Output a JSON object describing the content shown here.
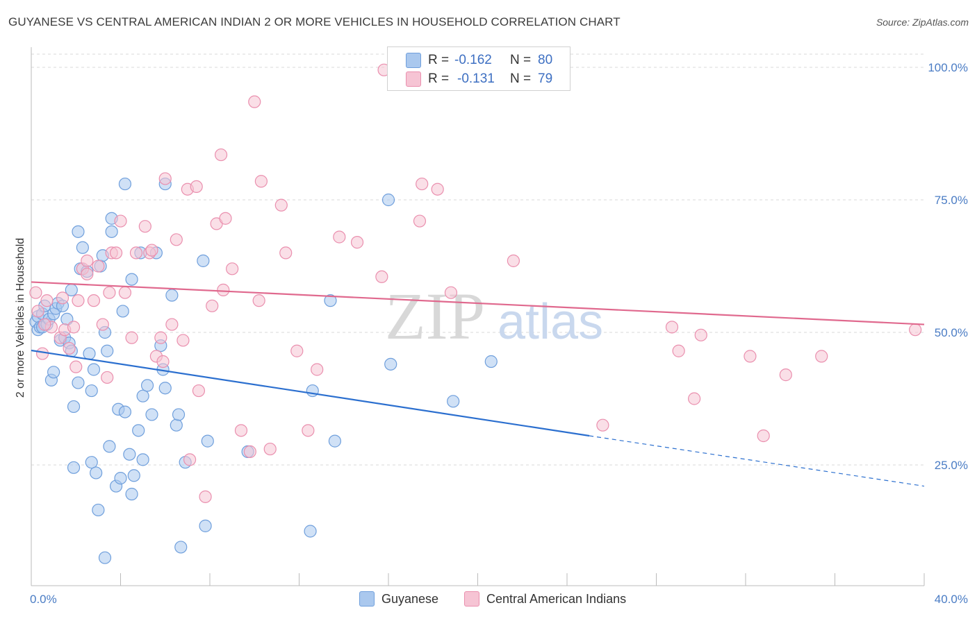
{
  "title": "GUYANESE VS CENTRAL AMERICAN INDIAN 2 OR MORE VEHICLES IN HOUSEHOLD CORRELATION CHART",
  "source": "Source: ZipAtlas.com",
  "watermark": {
    "zip": "ZIP",
    "atlas": "atlas"
  },
  "legend_top": {
    "rows": [
      {
        "r_label": "R =",
        "r_value": "-0.162",
        "n_label": "N =",
        "n_value": "80"
      },
      {
        "r_label": "R =",
        "r_value": "-0.131",
        "n_label": "N =",
        "n_value": "79"
      }
    ]
  },
  "legend_bottom": [
    "Guyanese",
    "Central American Indians"
  ],
  "colors": {
    "guyanese_fill": "#aac8ee",
    "guyanese_stroke": "#6f9fdc",
    "guyanese_line": "#2b6fcf",
    "cai_fill": "#f6c4d4",
    "cai_stroke": "#ea8fae",
    "cai_line": "#e0698e",
    "tick_text": "#4a7cc4",
    "grid": "#d9d9d9"
  },
  "chart_data": {
    "type": "scatter",
    "title": "GUYANESE VS CENTRAL AMERICAN INDIAN 2 OR MORE VEHICLES IN HOUSEHOLD CORRELATION CHART",
    "xlabel": "",
    "ylabel": "2 or more Vehicles in Household",
    "xlim": [
      0,
      40
    ],
    "ylim": [
      0,
      105
    ],
    "x_tick_labels": [
      "0.0%",
      "40.0%"
    ],
    "y_ticks": [
      25,
      50,
      75,
      100
    ],
    "y_tick_labels": [
      "25.0%",
      "50.0%",
      "75.0%",
      "100.0%"
    ],
    "grid": true,
    "legend_position": "top-center",
    "series": [
      {
        "name": "Guyanese",
        "r": -0.162,
        "n": 80,
        "trend": {
          "x0": 0,
          "y0": 46.6,
          "x1": 25,
          "y1": 30.5,
          "dashed_to_x": 40,
          "dashed_to_y": 21
        },
        "points": [
          [
            0.2,
            52
          ],
          [
            0.3,
            50.5
          ],
          [
            0.3,
            53
          ],
          [
            0.4,
            51
          ],
          [
            0.5,
            53.5
          ],
          [
            0.5,
            51
          ],
          [
            0.6,
            55
          ],
          [
            0.7,
            51.5
          ],
          [
            0.8,
            52.5
          ],
          [
            0.9,
            41
          ],
          [
            1.0,
            42.5
          ],
          [
            1.0,
            53.5
          ],
          [
            1.1,
            54.5
          ],
          [
            1.2,
            55.5
          ],
          [
            1.3,
            48.5
          ],
          [
            1.4,
            55
          ],
          [
            1.5,
            49
          ],
          [
            1.6,
            52.5
          ],
          [
            1.7,
            48
          ],
          [
            1.8,
            58
          ],
          [
            1.8,
            46.5
          ],
          [
            1.9,
            36
          ],
          [
            1.9,
            24.5
          ],
          [
            2.1,
            69
          ],
          [
            2.1,
            40.5
          ],
          [
            2.2,
            62
          ],
          [
            2.3,
            66
          ],
          [
            2.5,
            61.5
          ],
          [
            2.6,
            46
          ],
          [
            2.7,
            25.5
          ],
          [
            2.7,
            39
          ],
          [
            2.8,
            43
          ],
          [
            2.9,
            23.5
          ],
          [
            3.0,
            16.5
          ],
          [
            3.1,
            62.5
          ],
          [
            3.2,
            64.5
          ],
          [
            3.3,
            7.5
          ],
          [
            3.3,
            50
          ],
          [
            3.4,
            46.5
          ],
          [
            3.5,
            28.5
          ],
          [
            3.6,
            69
          ],
          [
            3.6,
            71.5
          ],
          [
            3.8,
            21
          ],
          [
            3.9,
            35.5
          ],
          [
            4.0,
            22.5
          ],
          [
            4.1,
            54
          ],
          [
            4.2,
            35
          ],
          [
            4.2,
            78
          ],
          [
            4.4,
            27
          ],
          [
            4.5,
            19.5
          ],
          [
            4.5,
            60
          ],
          [
            4.6,
            23
          ],
          [
            4.8,
            31.5
          ],
          [
            4.9,
            65
          ],
          [
            5.0,
            38
          ],
          [
            5.0,
            26
          ],
          [
            5.2,
            40
          ],
          [
            5.4,
            34.5
          ],
          [
            5.6,
            65
          ],
          [
            5.8,
            47.5
          ],
          [
            5.9,
            43
          ],
          [
            6.0,
            39.5
          ],
          [
            6.0,
            78
          ],
          [
            6.3,
            57
          ],
          [
            6.5,
            32.5
          ],
          [
            6.6,
            34.5
          ],
          [
            6.7,
            9.5
          ],
          [
            6.9,
            25.5
          ],
          [
            7.7,
            63.5
          ],
          [
            7.8,
            13.5
          ],
          [
            7.9,
            29.5
          ],
          [
            9.7,
            27.5
          ],
          [
            12.5,
            12.5
          ],
          [
            12.6,
            39
          ],
          [
            13.6,
            29.5
          ],
          [
            13.4,
            56
          ],
          [
            16.0,
            75
          ],
          [
            16.1,
            44
          ],
          [
            18.9,
            37
          ],
          [
            20.6,
            44.5
          ]
        ]
      },
      {
        "name": "Central American Indians",
        "r": -0.131,
        "n": 79,
        "trend": {
          "x0": 0,
          "y0": 59.5,
          "x1": 40,
          "y1": 51.5
        },
        "points": [
          [
            0.2,
            57.5
          ],
          [
            0.3,
            54
          ],
          [
            0.5,
            46
          ],
          [
            0.7,
            56
          ],
          [
            0.9,
            51
          ],
          [
            1.3,
            49
          ],
          [
            1.4,
            56.5
          ],
          [
            1.5,
            50.5
          ],
          [
            1.7,
            47
          ],
          [
            1.9,
            51
          ],
          [
            2.0,
            43.5
          ],
          [
            2.1,
            56
          ],
          [
            2.3,
            62
          ],
          [
            2.5,
            61
          ],
          [
            2.5,
            63.5
          ],
          [
            2.8,
            56
          ],
          [
            3.0,
            62.5
          ],
          [
            3.2,
            51.5
          ],
          [
            3.4,
            41.5
          ],
          [
            3.5,
            57.5
          ],
          [
            3.6,
            65
          ],
          [
            3.8,
            65
          ],
          [
            4.0,
            71
          ],
          [
            4.2,
            57.5
          ],
          [
            4.5,
            49
          ],
          [
            4.7,
            65
          ],
          [
            5.1,
            70
          ],
          [
            5.3,
            65
          ],
          [
            5.4,
            65.5
          ],
          [
            5.6,
            45.5
          ],
          [
            5.8,
            49
          ],
          [
            5.9,
            44.5
          ],
          [
            6.0,
            79
          ],
          [
            6.3,
            51.5
          ],
          [
            6.5,
            67.5
          ],
          [
            6.8,
            48.5
          ],
          [
            7.0,
            77
          ],
          [
            7.1,
            26
          ],
          [
            7.4,
            77.5
          ],
          [
            7.5,
            39
          ],
          [
            7.8,
            19
          ],
          [
            8.1,
            55
          ],
          [
            8.3,
            70.5
          ],
          [
            8.5,
            83.5
          ],
          [
            8.6,
            58
          ],
          [
            8.7,
            71.5
          ],
          [
            9.0,
            62
          ],
          [
            9.4,
            31.5
          ],
          [
            9.8,
            27.5
          ],
          [
            10.0,
            93.5
          ],
          [
            10.2,
            56
          ],
          [
            10.3,
            78.5
          ],
          [
            10.7,
            28
          ],
          [
            11.2,
            74
          ],
          [
            11.4,
            65
          ],
          [
            11.9,
            46.5
          ],
          [
            12.4,
            31.5
          ],
          [
            12.8,
            43
          ],
          [
            13.8,
            68
          ],
          [
            14.6,
            67
          ],
          [
            15.7,
            60.5
          ],
          [
            15.8,
            99.5
          ],
          [
            17.4,
            71
          ],
          [
            17.5,
            78
          ],
          [
            18.2,
            77
          ],
          [
            18.8,
            57.5
          ],
          [
            19.4,
            99
          ],
          [
            21.6,
            63.5
          ],
          [
            25.6,
            32.5
          ],
          [
            28.7,
            51
          ],
          [
            29.0,
            46.5
          ],
          [
            29.7,
            37.5
          ],
          [
            30.0,
            49.5
          ],
          [
            32.2,
            45.5
          ],
          [
            32.8,
            30.5
          ],
          [
            33.8,
            42
          ],
          [
            35.4,
            45.5
          ],
          [
            39.6,
            50.5
          ],
          [
            0.6,
            51.5
          ]
        ]
      }
    ]
  }
}
